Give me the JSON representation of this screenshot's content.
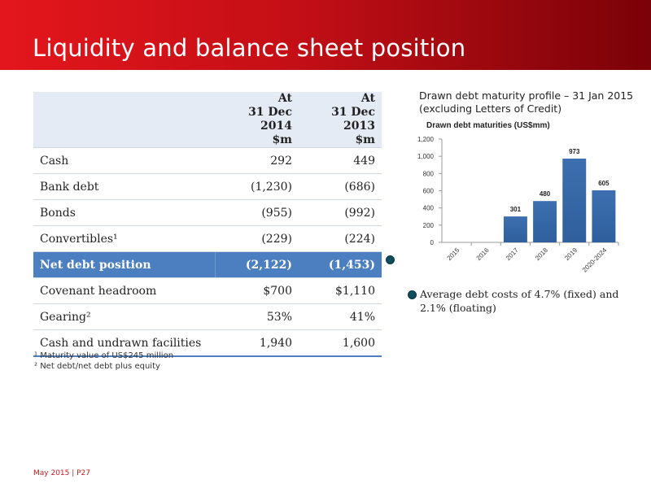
{
  "header": {
    "title": "Liquidity and balance sheet position"
  },
  "table": {
    "col1_header": [
      "At",
      "31 Dec 2014",
      "$m"
    ],
    "col2_header": [
      "At",
      "31 Dec 2013",
      "$m"
    ],
    "rows": [
      {
        "label": "Cash",
        "v2014": "292",
        "v2013": "449"
      },
      {
        "label": "Bank debt",
        "v2014": "(1,230)",
        "v2013": "(686)"
      },
      {
        "label": "Bonds",
        "v2014": "(955)",
        "v2013": "(992)"
      },
      {
        "label": "Convertibles¹",
        "v2014": "(229)",
        "v2013": "(224)"
      },
      {
        "label": "Net debt position",
        "v2014": "(2,122)",
        "v2013": "(1,453)"
      },
      {
        "label": "Covenant headroom",
        "v2014": "$700",
        "v2013": "$1,110"
      },
      {
        "label": "Gearing²",
        "v2014": "53%",
        "v2013": "41%"
      },
      {
        "label": "Cash and undrawn facilities",
        "v2014": "1,940",
        "v2013": "1,600"
      }
    ]
  },
  "footnotes": [
    "¹ Maturity value of US$245 million",
    "² Net debt/net debt plus equity"
  ],
  "chart_heading": [
    "Drawn debt maturity profile – 31 Jan 2015",
    "(excluding Letters of Credit)"
  ],
  "bullet": "Average debt costs of 4.7% (fixed) and 2.1% (floating)",
  "footer": "May 2015 | P27",
  "colors": {
    "banner": "#d4121a",
    "highlight_row": "#4b7fbf",
    "bar": "#2f5f9c",
    "bullet_dot": "#0f4d5a"
  },
  "chart_data": {
    "type": "bar",
    "title": "Drawn debt maturities (US$mm)",
    "categories": [
      "2015",
      "2016",
      "2017",
      "2018",
      "2019",
      "2020-2024"
    ],
    "values": [
      0,
      0,
      301,
      480,
      973,
      605
    ],
    "value_labels": [
      "",
      "",
      "301",
      "480",
      "973",
      "605"
    ],
    "ylim": [
      0,
      1200
    ],
    "yticks": [
      0,
      200,
      400,
      600,
      800,
      1000,
      1200
    ],
    "ytick_labels": [
      "0",
      "200",
      "400",
      "600",
      "800",
      "1,000",
      "1,200"
    ],
    "grid": false
  }
}
